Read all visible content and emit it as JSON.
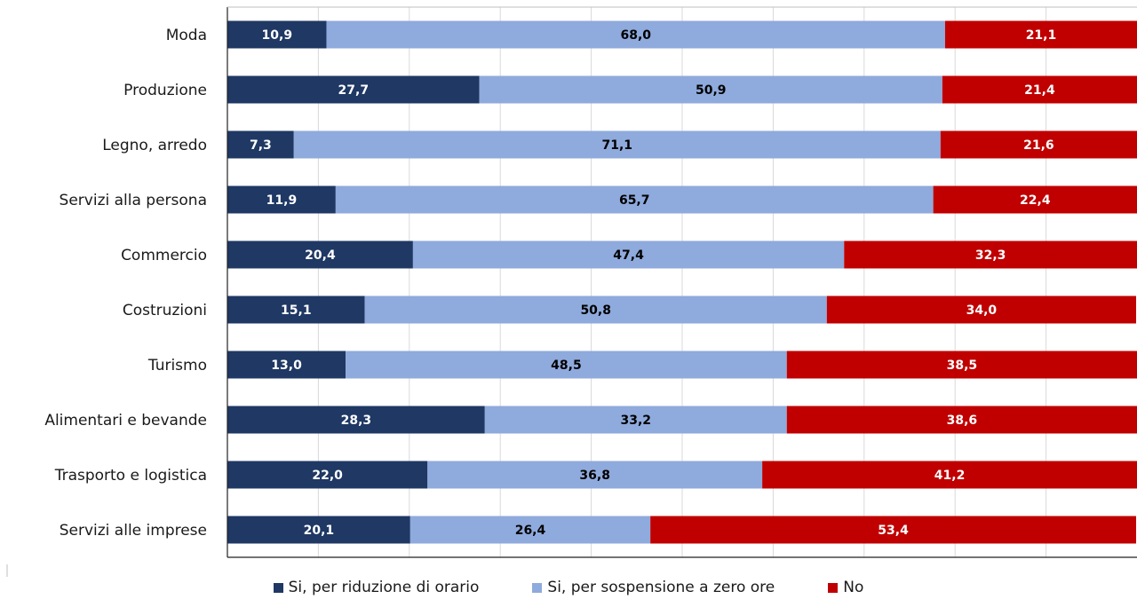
{
  "chart_data": {
    "type": "bar",
    "orientation": "horizontal",
    "stacked": true,
    "title": "",
    "xlabel": "",
    "ylabel": "",
    "xlim": [
      0,
      100
    ],
    "grid": true,
    "legend_position": "bottom",
    "categories": [
      "Moda",
      "Produzione",
      "Legno, arredo",
      "Servizi alla persona",
      "Commercio",
      "Costruzioni",
      "Turismo",
      "Alimentari e bevande",
      "Trasporto e logistica",
      "Servizi alle imprese"
    ],
    "series": [
      {
        "name": "Si, per riduzione di orario",
        "color": "#1f3864",
        "label_color": "#ffffff",
        "values": [
          10.9,
          27.7,
          7.3,
          11.9,
          20.4,
          15.1,
          13.0,
          28.3,
          22.0,
          20.1
        ],
        "labels": [
          "10,9",
          "27,7",
          "7,3",
          "11,9",
          "20,4",
          "15,1",
          "13,0",
          "28,3",
          "22,0",
          "20,1"
        ]
      },
      {
        "name": "Si, per sospensione a zero ore",
        "color": "#8faadc",
        "label_color": "#000000",
        "values": [
          68.0,
          50.9,
          71.1,
          65.7,
          47.4,
          50.8,
          48.5,
          33.2,
          36.8,
          26.4
        ],
        "labels": [
          "68,0",
          "50,9",
          "71,1",
          "65,7",
          "47,4",
          "50,8",
          "48,5",
          "33,2",
          "36,8",
          "26,4"
        ]
      },
      {
        "name": "No",
        "color": "#c00000",
        "label_color": "#ffffff",
        "values": [
          21.1,
          21.4,
          21.6,
          22.4,
          32.3,
          34.0,
          38.5,
          38.6,
          41.2,
          53.4
        ],
        "labels": [
          "21,1",
          "21,4",
          "21,6",
          "22,4",
          "32,3",
          "34,0",
          "38,5",
          "38,6",
          "41,2",
          "53,4"
        ]
      }
    ]
  }
}
